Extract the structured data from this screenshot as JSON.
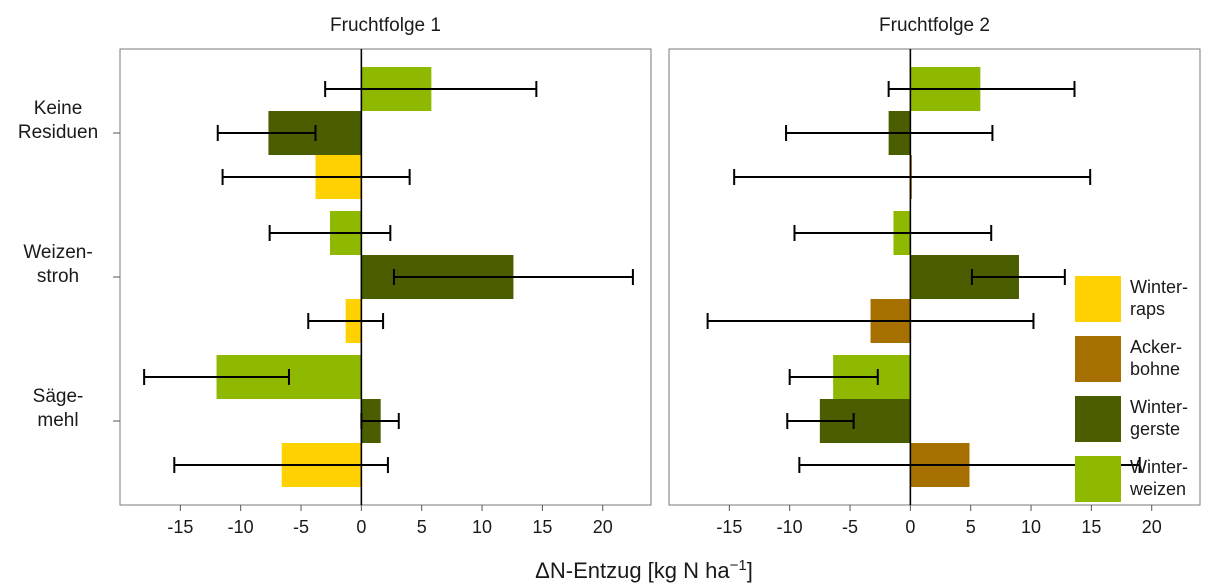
{
  "chart_data": {
    "type": "bar",
    "orientation": "horizontal",
    "xlabel": "ΔN-Entzug [kg N ha⁻¹]",
    "xlim": [
      -20,
      24
    ],
    "xticks": [
      -15,
      -10,
      -5,
      0,
      5,
      10,
      15,
      20
    ],
    "xtick_labels": [
      "-15",
      "-10",
      "-5",
      "0",
      "5",
      "10",
      "15",
      "20"
    ],
    "categories": [
      {
        "lines": [
          "Keine",
          "Residuen"
        ]
      },
      {
        "lines": [
          "Weizen-",
          "stroh"
        ]
      },
      {
        "lines": [
          "Säge-",
          "mehl"
        ]
      }
    ],
    "legend": {
      "position": "right",
      "entries": [
        {
          "key": "raps",
          "lines": [
            "Winter-",
            "raps"
          ],
          "color": "#FFD100"
        },
        {
          "key": "bohne",
          "lines": [
            "Acker-",
            "bohne"
          ],
          "color": "#A67000"
        },
        {
          "key": "gerste",
          "lines": [
            "Winter-",
            "gerste"
          ],
          "color": "#4A5E00"
        },
        {
          "key": "weizen",
          "lines": [
            "Winter-",
            "weizen"
          ],
          "color": "#8FB800"
        }
      ]
    },
    "panels": [
      {
        "title": "Fruchtfolge 1",
        "groups": [
          {
            "category": 0,
            "bars": [
              {
                "crop": "weizen",
                "value": 5.8,
                "err_low": -3.0,
                "err_high": 14.5
              },
              {
                "crop": "gerste",
                "value": -7.7,
                "err_low": -11.9,
                "err_high": -3.8
              },
              {
                "crop": "raps",
                "value": -3.8,
                "err_low": -11.5,
                "err_high": 4.0
              }
            ]
          },
          {
            "category": 1,
            "bars": [
              {
                "crop": "weizen",
                "value": -2.6,
                "err_low": -7.6,
                "err_high": 2.4
              },
              {
                "crop": "gerste",
                "value": 12.6,
                "err_low": 2.7,
                "err_high": 22.5
              },
              {
                "crop": "raps",
                "value": -1.3,
                "err_low": -4.4,
                "err_high": 1.8
              }
            ]
          },
          {
            "category": 2,
            "bars": [
              {
                "crop": "weizen",
                "value": -12.0,
                "err_low": -18.0,
                "err_high": -6.0
              },
              {
                "crop": "gerste",
                "value": 1.6,
                "err_low": 0.0,
                "err_high": 3.1
              },
              {
                "crop": "raps",
                "value": -6.6,
                "err_low": -15.5,
                "err_high": 2.2
              }
            ]
          }
        ]
      },
      {
        "title": "Fruchtfolge 2",
        "groups": [
          {
            "category": 0,
            "bars": [
              {
                "crop": "weizen",
                "value": 5.8,
                "err_low": -1.8,
                "err_high": 13.6
              },
              {
                "crop": "gerste",
                "value": -1.8,
                "err_low": -10.3,
                "err_high": 6.8
              },
              {
                "crop": "bohne",
                "value": 0.1,
                "err_low": -14.6,
                "err_high": 14.9
              }
            ]
          },
          {
            "category": 1,
            "bars": [
              {
                "crop": "weizen",
                "value": -1.4,
                "err_low": -9.6,
                "err_high": 6.7
              },
              {
                "crop": "gerste",
                "value": 9.0,
                "err_low": 5.1,
                "err_high": 12.8
              },
              {
                "crop": "bohne",
                "value": -3.3,
                "err_low": -16.8,
                "err_high": 10.2
              }
            ]
          },
          {
            "category": 2,
            "bars": [
              {
                "crop": "weizen",
                "value": -6.4,
                "err_low": -10.0,
                "err_high": -2.7
              },
              {
                "crop": "gerste",
                "value": -7.5,
                "err_low": -10.2,
                "err_high": -4.7
              },
              {
                "crop": "bohne",
                "value": 4.9,
                "err_low": -9.2,
                "err_high": 19.0
              }
            ]
          }
        ]
      }
    ]
  }
}
